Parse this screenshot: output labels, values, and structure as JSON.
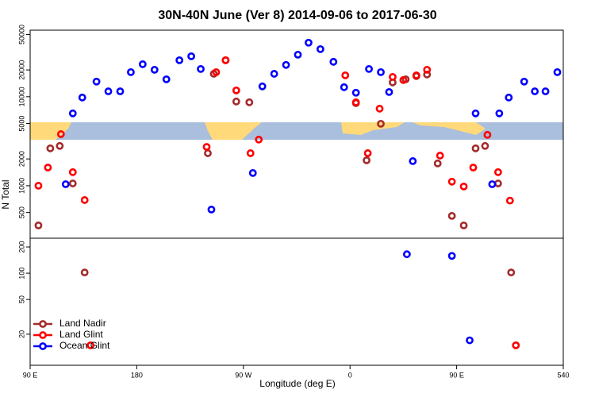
{
  "chart_data": [
    {
      "type": "scatter",
      "title": "30N-40N June (Ver 8)   2014-09-06 to 2017-06-30",
      "ylabel": "N Total",
      "log_y": true,
      "xlim": [
        90,
        540
      ],
      "ylim": [
        257,
        56000
      ],
      "yticks": [
        500,
        1000,
        2000,
        5000,
        10000,
        20000,
        50000
      ],
      "series": [
        {
          "name": "Land Nadir",
          "color": "#a52a2a",
          "x": [
            97,
            107,
            115,
            126,
            240,
            245,
            255,
            264,
            275,
            365,
            374,
            386,
            396,
            407,
            416,
            425,
            434,
            446,
            456,
            466,
            474,
            485
          ],
          "values": [
            358,
            2630,
            2800,
            1060,
            2320,
            18100,
            25700,
            8840,
            8660,
            8480,
            1930,
            4970,
            14480,
            15700,
            17060,
            17780,
            1780,
            458,
            358,
            2630,
            2800,
            1060
          ]
        },
        {
          "name": "Land Glint",
          "color": "#ff0000",
          "x": [
            97,
            105,
            116,
            126,
            136,
            239,
            247,
            255,
            264,
            276,
            283,
            356,
            365,
            375,
            385,
            396,
            405,
            416,
            425,
            436,
            446,
            456,
            464,
            476,
            485,
            495
          ],
          "values": [
            1000,
            1600,
            3800,
            1420,
            690,
            2730,
            18900,
            25700,
            11780,
            2320,
            3300,
            17400,
            8660,
            2320,
            7350,
            16700,
            15400,
            17400,
            20100,
            2180,
            1110,
            980,
            1600,
            3730,
            1420,
            680
          ]
        },
        {
          "name": "Ocean Glint",
          "color": "#0000ff",
          "x": [
            120,
            126,
            134,
            146,
            156,
            166,
            175,
            185,
            195,
            205,
            216,
            226,
            234,
            243,
            278,
            286,
            296,
            306,
            316,
            325,
            335,
            346,
            355,
            365,
            376,
            386,
            393,
            413,
            466,
            480,
            486,
            494,
            507,
            516,
            525,
            535
          ],
          "values": [
            1040,
            6500,
            9800,
            14800,
            11500,
            11500,
            18900,
            23200,
            20100,
            15700,
            25700,
            28500,
            20500,
            540,
            1390,
            13070,
            18100,
            22800,
            29700,
            40500,
            34300,
            24700,
            12800,
            11100,
            20500,
            18900,
            11300,
            1890,
            6500,
            1040,
            6500,
            9800,
            14800,
            11500,
            11500,
            18900
          ]
        }
      ]
    },
    {
      "type": "scatter",
      "xlabel": "Longitude (deg E)",
      "log_y": true,
      "legend": "bottom-left",
      "xlim": [
        90,
        540
      ],
      "ylim": [
        8.8,
        252
      ],
      "xticks": [
        {
          "value": 90,
          "label": "90 E"
        },
        180,
        {
          "value": 270,
          "label": "90 W"
        },
        {
          "value": 360,
          "label": "0"
        },
        {
          "value": 450,
          "label": "90 E"
        },
        540
      ],
      "yticks": [
        20,
        50,
        100,
        200
      ],
      "series": [
        {
          "name": "Land Nadir",
          "color": "#a52a2a",
          "x": [
            136,
            496
          ],
          "values": [
            102,
            102
          ]
        },
        {
          "name": "Land Glint",
          "color": "#ff0000",
          "x": [
            141,
            500
          ],
          "values": [
            14.9,
            14.9
          ]
        },
        {
          "name": "Ocean Glint",
          "color": "#0000ff",
          "x": [
            408,
            446,
            461
          ],
          "values": [
            165,
            158,
            17
          ]
        }
      ]
    }
  ]
}
